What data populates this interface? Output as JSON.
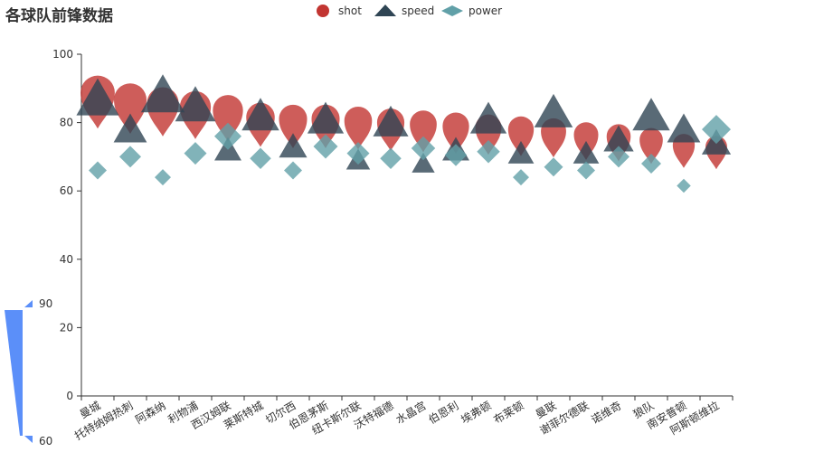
{
  "chart_data": {
    "type": "scatter",
    "title": "各球队前锋数据",
    "categories": [
      "曼城",
      "托特纳姆热刺",
      "阿森纳",
      "利物浦",
      "西汉姆联",
      "莱斯特城",
      "切尔西",
      "伯恩茅斯",
      "纽卡斯尔联",
      "沃特福德",
      "水晶宫",
      "伯恩利",
      "埃弗顿",
      "布莱顿",
      "曼联",
      "谢菲尔德联",
      "诺维奇",
      "狼队",
      "南安普顿",
      "阿斯顿维拉"
    ],
    "ylim": [
      0,
      100
    ],
    "yticks": [
      0,
      20,
      40,
      60,
      80,
      100
    ],
    "series": [
      {
        "name": "shot",
        "shape": "pin",
        "color": "#c23531",
        "values": [
          88,
          86,
          85,
          84,
          83,
          81,
          80.5,
          80.5,
          80,
          79.5,
          79,
          78.5,
          78,
          77.5,
          77,
          76,
          75.5,
          74.5,
          73,
          72.5
        ]
      },
      {
        "name": "speed",
        "shape": "triangle",
        "color": "#2f4554",
        "values": [
          87,
          78,
          88,
          85,
          72,
          82,
          73,
          81,
          69,
          80,
          68,
          72,
          81,
          71,
          83,
          71,
          75,
          82,
          78,
          74
        ]
      },
      {
        "name": "power",
        "shape": "diamond",
        "color": "#61a0a8",
        "values": [
          66,
          70,
          64,
          71,
          76,
          69.5,
          66,
          73,
          71,
          69.5,
          72.5,
          70.5,
          71.5,
          64,
          67,
          66,
          70,
          68,
          61.5,
          78
        ]
      }
    ],
    "legend": {
      "placement": "top-center"
    },
    "visual_map": {
      "min_label": "60",
      "max_label": "90",
      "color": "#5b8ff9"
    }
  }
}
